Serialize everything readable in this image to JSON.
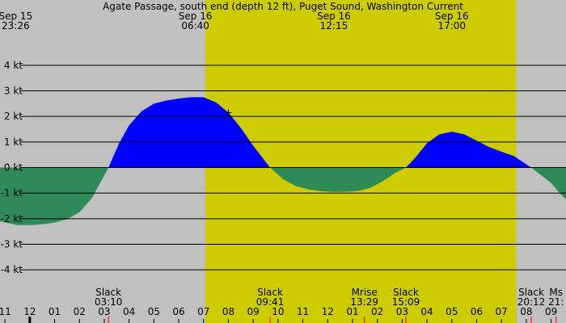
{
  "chart_data": {
    "type": "area",
    "title": "Agate Passage, south end (depth 12 ft), Puget Sound, Washington Current",
    "ylim": [
      -4.5,
      5.7
    ],
    "xlim": [
      10.8,
      33.6
    ],
    "y_ticks": [
      {
        "v": 4,
        "label": "4 kt"
      },
      {
        "v": 3,
        "label": "3 kt"
      },
      {
        "v": 2,
        "label": "2 kt"
      },
      {
        "v": 1,
        "label": "1 kt"
      },
      {
        "v": 0,
        "label": "0 kt"
      },
      {
        "v": -1,
        "label": "-1 kt"
      },
      {
        "v": -2,
        "label": "-2 kt"
      },
      {
        "v": -3,
        "label": "-3 kt"
      },
      {
        "v": -4,
        "label": "-4 kt"
      }
    ],
    "hour_ticks": [
      {
        "x": 11,
        "label": "11"
      },
      {
        "x": 12,
        "label": "12"
      },
      {
        "x": 13,
        "label": "01"
      },
      {
        "x": 14,
        "label": "02"
      },
      {
        "x": 15,
        "label": "03"
      },
      {
        "x": 16,
        "label": "04"
      },
      {
        "x": 17,
        "label": "05"
      },
      {
        "x": 18,
        "label": "06"
      },
      {
        "x": 19,
        "label": "07"
      },
      {
        "x": 20,
        "label": "08"
      },
      {
        "x": 21,
        "label": "09"
      },
      {
        "x": 22,
        "label": "10"
      },
      {
        "x": 23,
        "label": "11"
      },
      {
        "x": 24,
        "label": "12"
      },
      {
        "x": 25,
        "label": "01"
      },
      {
        "x": 26,
        "label": "02"
      },
      {
        "x": 27,
        "label": "03"
      },
      {
        "x": 28,
        "label": "04"
      },
      {
        "x": 29,
        "label": "05"
      },
      {
        "x": 30,
        "label": "06"
      },
      {
        "x": 31,
        "label": "07"
      },
      {
        "x": 32,
        "label": "08"
      },
      {
        "x": 33,
        "label": "09"
      }
    ],
    "daylight": [
      19.07,
      31.6
    ],
    "header_labels": [
      {
        "x": 11.43,
        "date": "Sep 15",
        "time": "23:26"
      },
      {
        "x": 18.67,
        "date": "Sep 16",
        "time": "06:40"
      },
      {
        "x": 24.25,
        "date": "Sep 16",
        "time": "12:15"
      },
      {
        "x": 29.0,
        "date": "Sep 16",
        "time": "17:00"
      }
    ],
    "events": [
      {
        "x": 15.17,
        "name": "Slack",
        "time": "03:10"
      },
      {
        "x": 21.68,
        "name": "Slack",
        "time": "09:41"
      },
      {
        "x": 25.48,
        "name": "Mrise",
        "time": "13:29"
      },
      {
        "x": 27.15,
        "name": "Slack",
        "time": "15:09"
      },
      {
        "x": 32.2,
        "name": "Slack",
        "time": "20:12"
      },
      {
        "x": 33.2,
        "name": "Ms",
        "time": "21:"
      }
    ],
    "series": [
      {
        "x": [
          10.8,
          11.5,
          12.0,
          12.5,
          13.0,
          13.5,
          14.0,
          14.5,
          15.17,
          15.6,
          16.0,
          16.5,
          17.0,
          17.5,
          18.0,
          18.5,
          19.0,
          19.5,
          20.0,
          20.5,
          21.0,
          21.68,
          22.2,
          22.7,
          23.2,
          23.7,
          24.2,
          24.7,
          25.2,
          25.7,
          26.2,
          26.7,
          27.15,
          27.5,
          28.0,
          28.5,
          29.0,
          29.5,
          30.0,
          30.5,
          31.0,
          31.5,
          32.2,
          32.6,
          33.0,
          33.3,
          33.6
        ],
        "values": [
          -2.1,
          -2.25,
          -2.25,
          -2.22,
          -2.15,
          -2.02,
          -1.75,
          -1.2,
          0.0,
          0.95,
          1.65,
          2.2,
          2.5,
          2.62,
          2.7,
          2.75,
          2.75,
          2.55,
          2.15,
          1.55,
          0.85,
          0.0,
          -0.45,
          -0.72,
          -0.85,
          -0.92,
          -0.95,
          -0.95,
          -0.92,
          -0.8,
          -0.55,
          -0.22,
          0.0,
          0.35,
          0.95,
          1.3,
          1.4,
          1.3,
          1.05,
          0.8,
          0.62,
          0.45,
          0.0,
          -0.3,
          -0.6,
          -0.95,
          -1.25
        ],
        "color_flood": "#0000ff",
        "color_ebb": "#2e8b57"
      }
    ],
    "colors": {
      "night": "#c0c0c0",
      "day": "#cccc00",
      "grid": "#000000",
      "marker": "#ff0000"
    }
  }
}
